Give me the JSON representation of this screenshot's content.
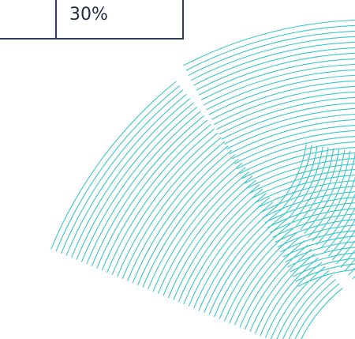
{
  "table": {
    "cell_value": "30%"
  },
  "decoration": {
    "icon": "curved-line-pattern",
    "color": "#39c6c9"
  }
}
